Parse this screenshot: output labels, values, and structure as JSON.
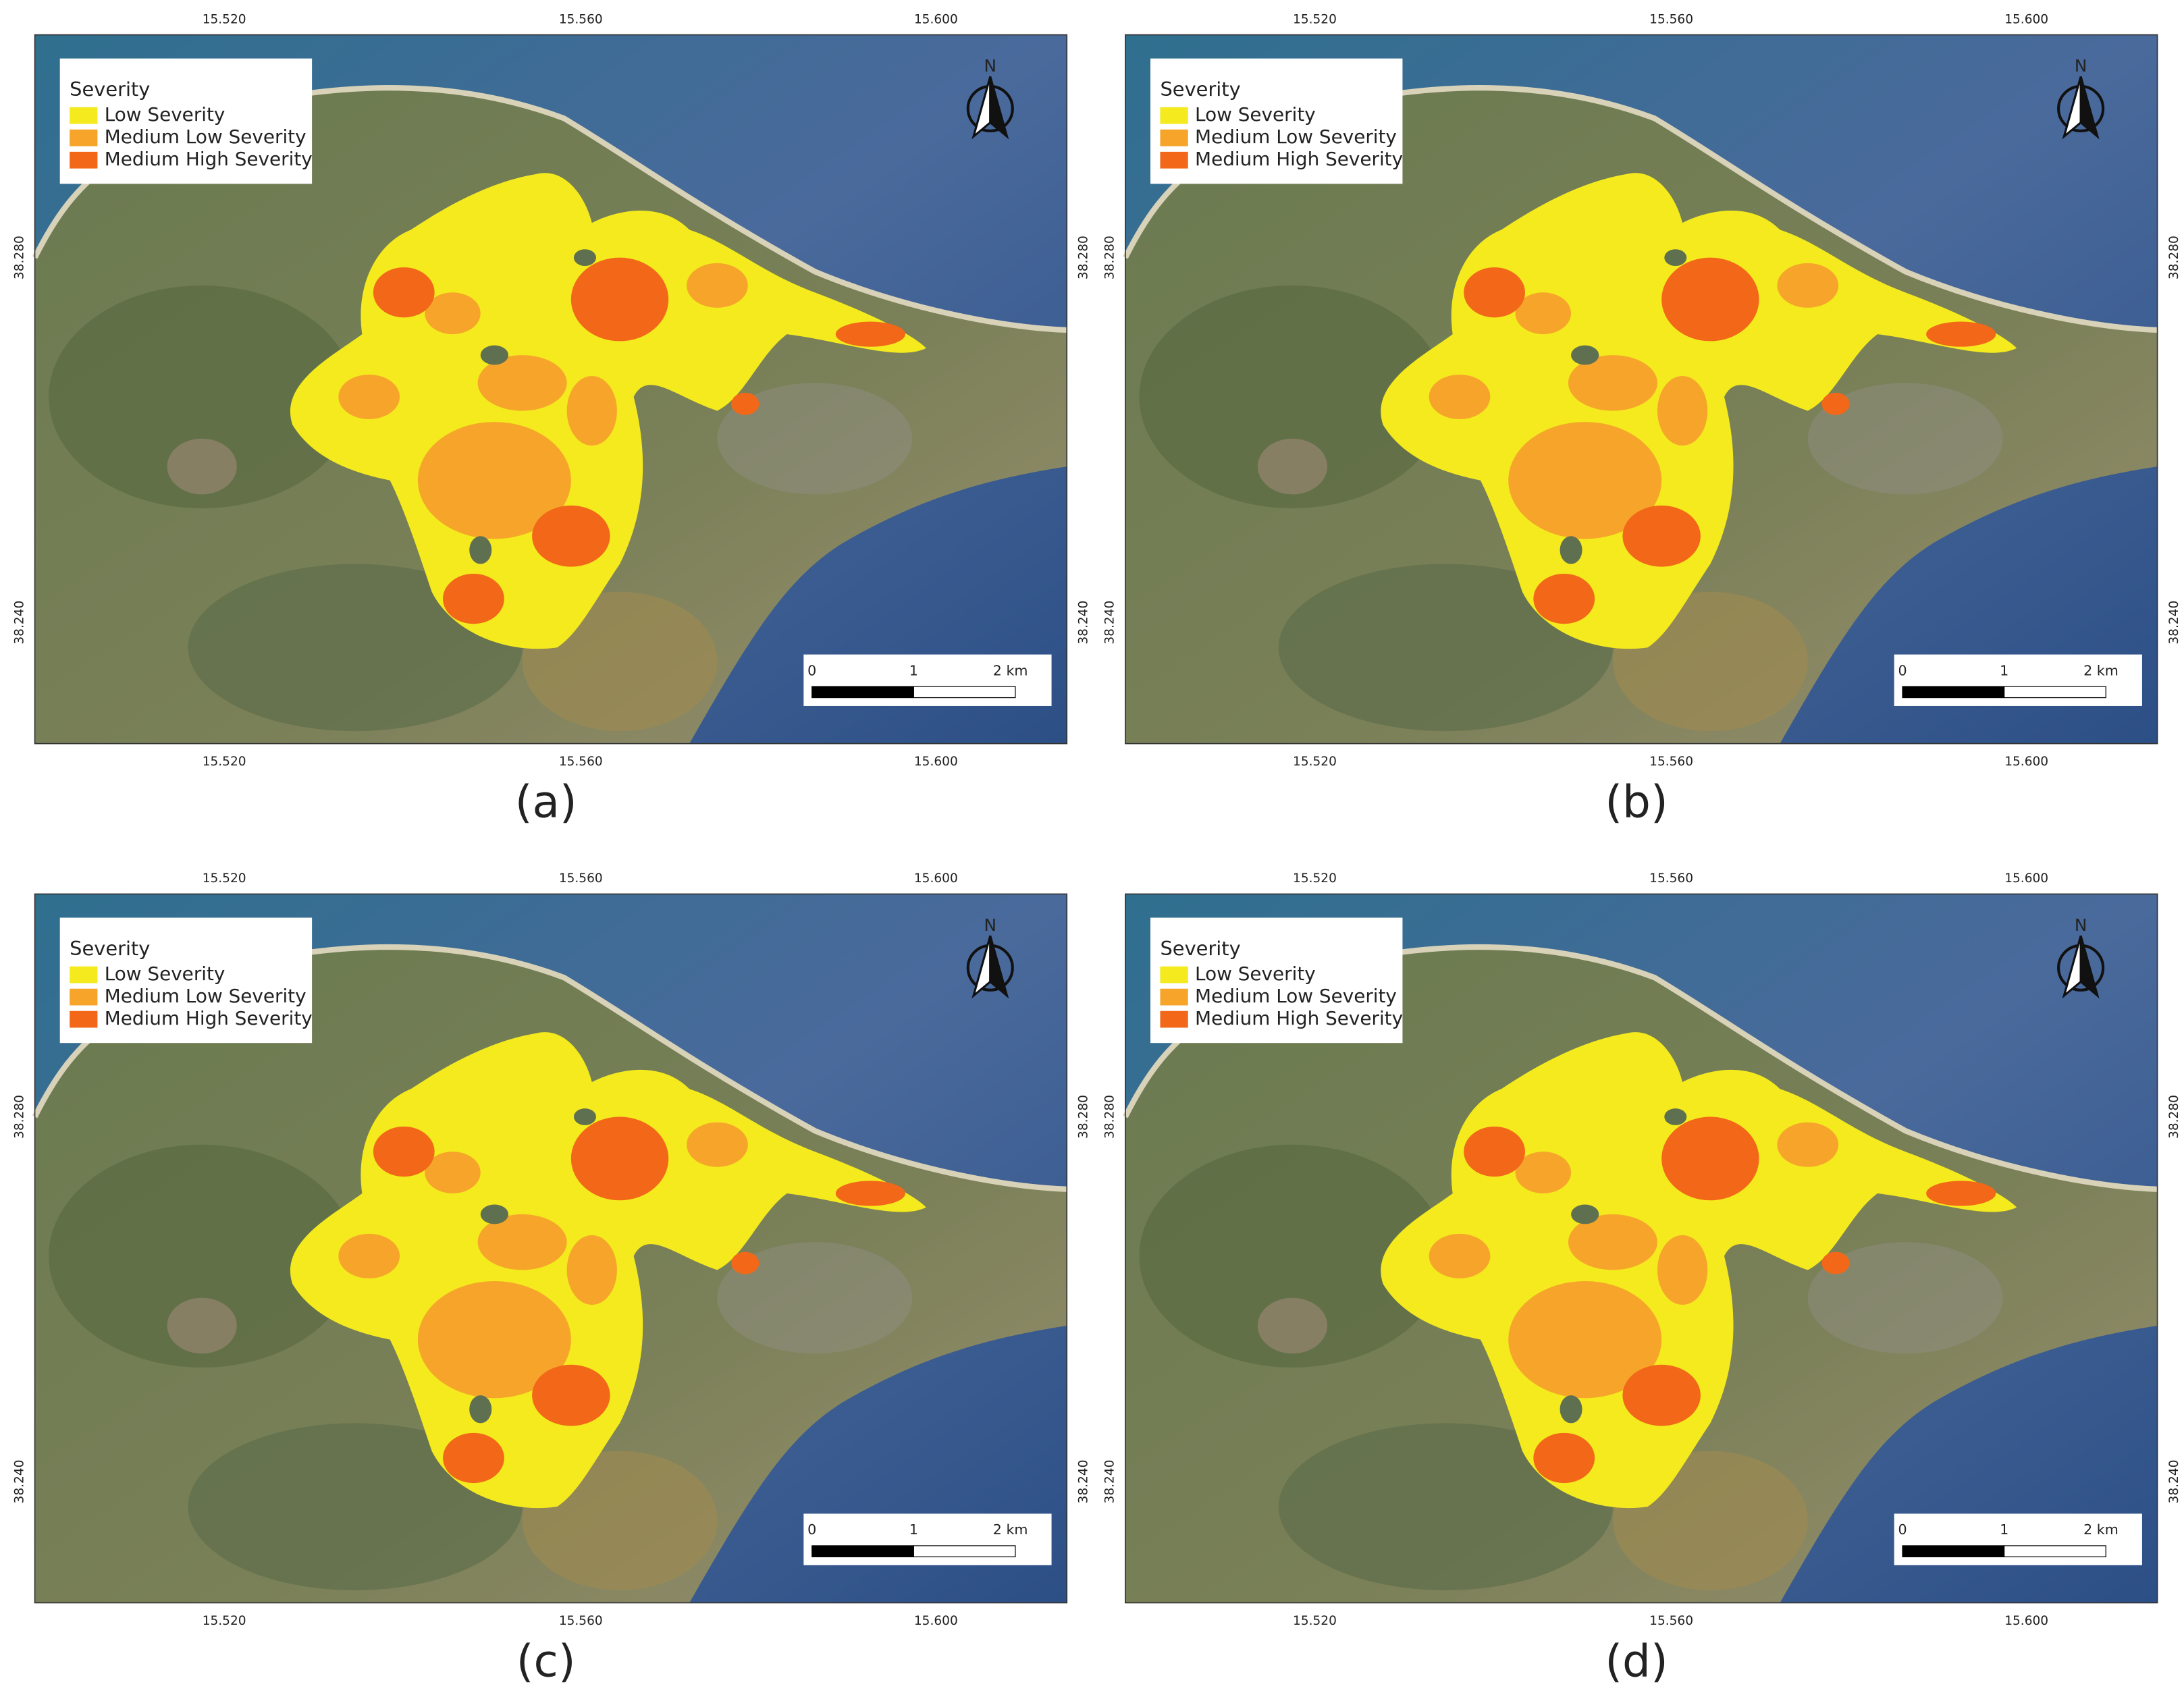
{
  "maps": [
    {
      "caption": "(a)",
      "legend": {
        "title": "Severity",
        "items": [
          {
            "label": "Low Severity",
            "color": "#f4ea1e"
          },
          {
            "label": "Medium Low Severity",
            "color": "#f6a52a"
          },
          {
            "label": "Medium High Severity",
            "color": "#f26818"
          }
        ]
      },
      "north": "N",
      "scale_bar": [
        "0",
        "1",
        "2 km"
      ],
      "x_ticks": [
        "15.520",
        "15.560",
        "15.600"
      ],
      "y_ticks": [
        "38.280",
        "38.240"
      ]
    },
    {
      "caption": "(b)",
      "legend": {
        "title": "Severity",
        "items": [
          {
            "label": "Low Severity",
            "color": "#f4ea1e"
          },
          {
            "label": "Medium Low Severity",
            "color": "#f6a52a"
          },
          {
            "label": "Medium High Severity",
            "color": "#f26818"
          }
        ]
      },
      "north": "N",
      "scale_bar": [
        "0",
        "1",
        "2 km"
      ],
      "x_ticks": [
        "15.520",
        "15.560",
        "15.600"
      ],
      "y_ticks": [
        "38.280",
        "38.240"
      ]
    },
    {
      "caption": "(c)",
      "legend": {
        "title": "Severity",
        "items": [
          {
            "label": "Low Severity",
            "color": "#f4ea1e"
          },
          {
            "label": "Medium Low Severity",
            "color": "#f6a52a"
          },
          {
            "label": "Medium High Severity",
            "color": "#f26818"
          }
        ]
      },
      "north": "N",
      "scale_bar": [
        "0",
        "1",
        "2 km"
      ],
      "x_ticks": [
        "15.520",
        "15.560",
        "15.600"
      ],
      "y_ticks": [
        "38.280",
        "38.240"
      ]
    },
    {
      "caption": "(d)",
      "legend": {
        "title": "Severity",
        "items": [
          {
            "label": "Low Severity",
            "color": "#f4ea1e"
          },
          {
            "label": "Medium Low Severity",
            "color": "#f6a52a"
          },
          {
            "label": "Medium High Severity",
            "color": "#f26818"
          }
        ]
      },
      "north": "N",
      "scale_bar": [
        "0",
        "1",
        "2 km"
      ],
      "x_ticks": [
        "15.520",
        "15.560",
        "15.600"
      ],
      "y_ticks": [
        "38.280",
        "38.240"
      ]
    }
  ]
}
